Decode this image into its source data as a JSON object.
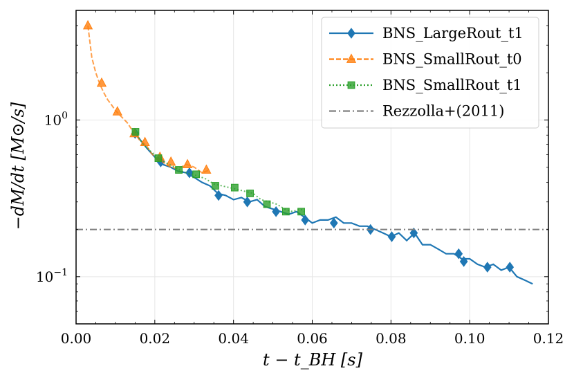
{
  "chart_data": {
    "type": "line",
    "title": "",
    "xlabel": "t − t_BH [s]",
    "ylabel": "−dM/dt [M⊙/s]",
    "xscale": "linear",
    "yscale": "log",
    "xlim": [
      0.0,
      0.12
    ],
    "ylim": [
      0.05,
      5.0
    ],
    "grid": true,
    "legend_position": "top-right",
    "x_ticks": [
      0.0,
      0.02,
      0.04,
      0.06,
      0.08,
      0.1,
      0.12
    ],
    "x_tick_labels": [
      "0.00",
      "0.02",
      "0.04",
      "0.06",
      "0.08",
      "0.10",
      "0.12"
    ],
    "y_ticks": [
      {
        "value": 1.0,
        "base": "10",
        "exp": "0"
      },
      {
        "value": 0.1,
        "base": "10",
        "exp": "−1"
      }
    ],
    "series": [
      {
        "name": "BNS_LargeRout_t1",
        "legend_label": "BNS_LargeRout_t1",
        "color": "#1f77b4",
        "linestyle": "solid",
        "marker": "diamond",
        "x": [
          0.015,
          0.018,
          0.02,
          0.022,
          0.024,
          0.026,
          0.028,
          0.03,
          0.032,
          0.034,
          0.036,
          0.038,
          0.04,
          0.042,
          0.044,
          0.046,
          0.048,
          0.05,
          0.052,
          0.054,
          0.056,
          0.058,
          0.06,
          0.062,
          0.064,
          0.066,
          0.068,
          0.07,
          0.072,
          0.074,
          0.076,
          0.078,
          0.08,
          0.082,
          0.084,
          0.086,
          0.088,
          0.09,
          0.092,
          0.094,
          0.096,
          0.098,
          0.1,
          0.102,
          0.104,
          0.106,
          0.108,
          0.11,
          0.112,
          0.114,
          0.116
        ],
        "y": [
          0.82,
          0.66,
          0.58,
          0.52,
          0.5,
          0.47,
          0.46,
          0.43,
          0.4,
          0.38,
          0.34,
          0.33,
          0.31,
          0.32,
          0.3,
          0.31,
          0.28,
          0.27,
          0.26,
          0.25,
          0.26,
          0.24,
          0.22,
          0.23,
          0.23,
          0.24,
          0.22,
          0.22,
          0.21,
          0.21,
          0.2,
          0.19,
          0.18,
          0.19,
          0.17,
          0.19,
          0.16,
          0.16,
          0.15,
          0.14,
          0.14,
          0.13,
          0.13,
          0.12,
          0.115,
          0.12,
          0.11,
          0.115,
          0.1,
          0.095,
          0.09
        ],
        "marker_x": [
          0.015,
          0.0215,
          0.0288,
          0.0362,
          0.0435,
          0.0508,
          0.0582,
          0.0655,
          0.0748,
          0.0802,
          0.0858,
          0.0972,
          0.0985,
          0.1045,
          0.1102
        ],
        "marker_y": [
          0.82,
          0.54,
          0.46,
          0.33,
          0.3,
          0.26,
          0.23,
          0.22,
          0.2,
          0.18,
          0.19,
          0.14,
          0.125,
          0.115,
          0.115
        ]
      },
      {
        "name": "BNS_SmallRout_t0",
        "legend_label": "BNS_SmallRout_t0",
        "color": "#ff7f0e",
        "linestyle": "dashed",
        "marker": "triangle",
        "x": [
          0.003,
          0.004,
          0.005,
          0.006,
          0.007,
          0.008,
          0.009,
          0.01,
          0.011,
          0.012,
          0.013,
          0.014,
          0.015,
          0.016,
          0.017,
          0.018,
          0.019,
          0.02,
          0.022,
          0.024,
          0.026,
          0.028,
          0.03,
          0.032,
          0.034
        ],
        "y": [
          4.0,
          2.5,
          2.0,
          1.7,
          1.5,
          1.35,
          1.25,
          1.15,
          1.08,
          1.02,
          0.96,
          0.88,
          0.82,
          0.75,
          0.72,
          0.68,
          0.62,
          0.58,
          0.54,
          0.5,
          0.49,
          0.52,
          0.5,
          0.46,
          0.48
        ],
        "marker_x": [
          0.003,
          0.0065,
          0.0105,
          0.0148,
          0.0175,
          0.0213,
          0.0241,
          0.0283,
          0.0331
        ],
        "marker_y": [
          4.0,
          1.72,
          1.13,
          0.82,
          0.72,
          0.58,
          0.54,
          0.52,
          0.48
        ]
      },
      {
        "name": "BNS_SmallRout_t1",
        "legend_label": "BNS_SmallRout_t1",
        "color": "#2ca02c",
        "linestyle": "dotted",
        "marker": "square",
        "x": [
          0.015,
          0.017,
          0.019,
          0.021,
          0.023,
          0.025,
          0.027,
          0.029,
          0.031,
          0.033,
          0.035,
          0.037,
          0.039,
          0.041,
          0.043,
          0.045,
          0.047,
          0.049,
          0.051,
          0.053,
          0.055,
          0.057,
          0.058
        ],
        "y": [
          0.84,
          0.7,
          0.63,
          0.57,
          0.53,
          0.5,
          0.47,
          0.45,
          0.44,
          0.42,
          0.39,
          0.38,
          0.37,
          0.36,
          0.35,
          0.34,
          0.31,
          0.3,
          0.29,
          0.27,
          0.26,
          0.27,
          0.26
        ],
        "marker_x": [
          0.0151,
          0.0209,
          0.0261,
          0.0305,
          0.0354,
          0.0403,
          0.0442,
          0.0485,
          0.0533,
          0.0572
        ],
        "marker_y": [
          0.84,
          0.57,
          0.48,
          0.45,
          0.38,
          0.37,
          0.34,
          0.29,
          0.26,
          0.26
        ]
      },
      {
        "name": "Rezzolla+(2011)",
        "legend_label": "Rezzolla+(2011)",
        "color": "#7f7f7f",
        "linestyle": "dashdot",
        "marker": "none",
        "x": [
          0.0,
          0.12
        ],
        "y": [
          0.2,
          0.2
        ]
      }
    ]
  }
}
